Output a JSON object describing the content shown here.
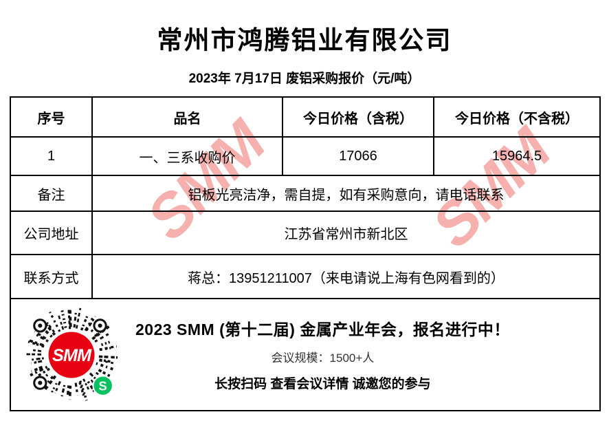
{
  "page": {
    "title": "常州市鸿腾铝业有限公司",
    "subtitle": "2023年 7月17日 废铝采购报价（元/吨）"
  },
  "table": {
    "headers": [
      "序号",
      "品名",
      "今日价格（含税）",
      "今日价格（不含税）"
    ],
    "rows": [
      {
        "no": "1",
        "name": "一、三系收购价",
        "price_tax": "17066",
        "price_no_tax": "15964.5"
      }
    ],
    "remark_label": "备注",
    "remark_value": "铝板光亮洁净，需自提，如有采购意向，请电话联系",
    "address_label": "公司地址",
    "address_value": "江苏省常州市新北区",
    "contact_label": "联系方式",
    "contact_value": "蒋总：13951211007（来电请说上海有色网看到的）"
  },
  "banner": {
    "title": "2023 SMM (第十二届) 金属产业年会，报名进行中！",
    "scale": "会议规模：1500+人",
    "action": "长按扫码 查看会议详情  诚邀您的参与",
    "qr_center_label": "SMM",
    "miniprogram_glyph": "S"
  },
  "watermark": {
    "text": "SMM",
    "color": "#EA504C"
  },
  "colors": {
    "smm_red": "#E60012",
    "wechat_green": "#07C160",
    "border_black": "#000000",
    "watermark_pink": "#F4A7A4"
  }
}
